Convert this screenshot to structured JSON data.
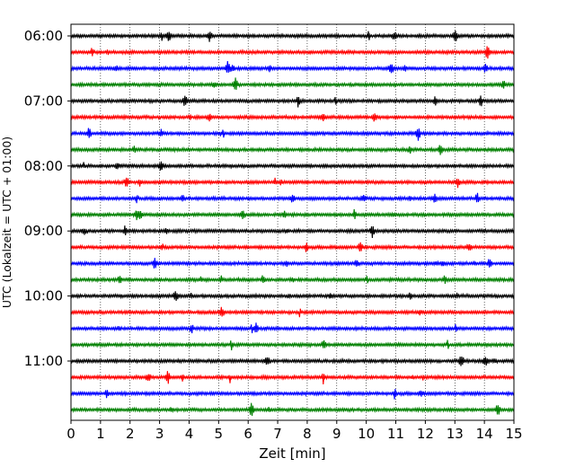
{
  "chart_data": {
    "type": "line",
    "title": "",
    "xlabel": "Zeit  [min]",
    "ylabel": "UTC (Lokalzeit = UTC + 01:00)",
    "xlim": [
      0,
      15
    ],
    "x_ticks": [
      "0",
      "1",
      "2",
      "3",
      "4",
      "5",
      "6",
      "7",
      "8",
      "9",
      "10",
      "11",
      "12",
      "13",
      "14",
      "15"
    ],
    "y_tick_labels": [
      "06:00",
      "07:00",
      "08:00",
      "09:00",
      "10:00",
      "11:00"
    ],
    "x_grid": true,
    "grid_style": "dotted",
    "trace_interval_min": 15,
    "trace_color_cycle": [
      "#000000",
      "#ff0000",
      "#0000ff",
      "#008000"
    ],
    "traces": [
      {
        "start": "06:00",
        "color": "#000000"
      },
      {
        "start": "06:15",
        "color": "#ff0000"
      },
      {
        "start": "06:30",
        "color": "#0000ff"
      },
      {
        "start": "06:45",
        "color": "#008000"
      },
      {
        "start": "07:00",
        "color": "#000000"
      },
      {
        "start": "07:15",
        "color": "#ff0000"
      },
      {
        "start": "07:30",
        "color": "#0000ff"
      },
      {
        "start": "07:45",
        "color": "#008000"
      },
      {
        "start": "08:00",
        "color": "#000000"
      },
      {
        "start": "08:15",
        "color": "#ff0000"
      },
      {
        "start": "08:30",
        "color": "#0000ff"
      },
      {
        "start": "08:45",
        "color": "#008000"
      },
      {
        "start": "09:00",
        "color": "#000000"
      },
      {
        "start": "09:15",
        "color": "#ff0000"
      },
      {
        "start": "09:30",
        "color": "#0000ff"
      },
      {
        "start": "09:45",
        "color": "#008000"
      },
      {
        "start": "10:00",
        "color": "#000000"
      },
      {
        "start": "10:15",
        "color": "#ff0000"
      },
      {
        "start": "10:30",
        "color": "#0000ff"
      },
      {
        "start": "10:45",
        "color": "#008000"
      },
      {
        "start": "11:00",
        "color": "#000000"
      },
      {
        "start": "11:15",
        "color": "#ff0000"
      },
      {
        "start": "11:30",
        "color": "#0000ff"
      },
      {
        "start": "11:45",
        "color": "#008000"
      }
    ]
  }
}
